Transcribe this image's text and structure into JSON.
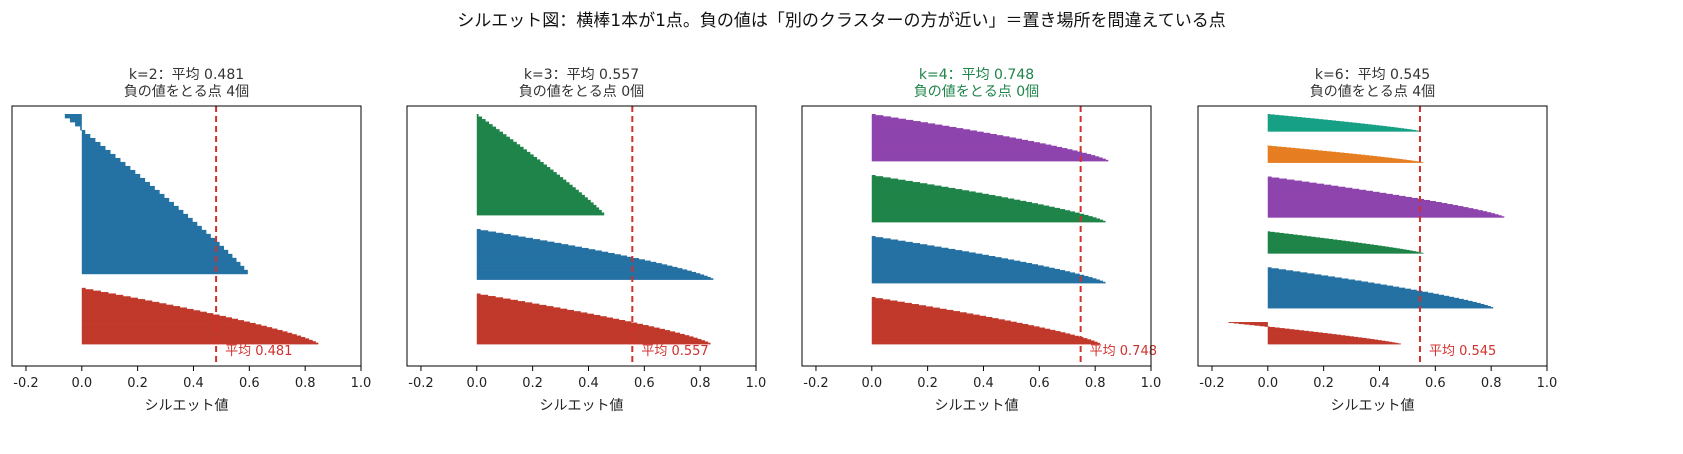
{
  "figure": {
    "suptitle": "シルエット図：横棒1本が1点。負の値は「別のクラスターの方が近い」＝置き場所を間違えている点",
    "highlight_color": "#1e8449",
    "avg_line_color": "#d0312d"
  },
  "chart_data": [
    {
      "type": "bar",
      "orientation": "horizontal",
      "k": 2,
      "title_line1": "k=2：平均 0.481",
      "title_line2": "負の値をとる点 4個",
      "highlight": false,
      "average": 0.481,
      "avg_label": "平均 0.481",
      "negative_count": 4,
      "xlabel": "シルエット値",
      "xlim": [
        -0.25,
        1.0
      ],
      "xticks": [
        "-0.2",
        "0.0",
        "0.2",
        "0.4",
        "0.6",
        "0.8",
        "1.0"
      ],
      "clusters": [
        {
          "color": "#c0392b",
          "max": 0.85,
          "min": 0.0,
          "shape": 1.3,
          "size": 58
        },
        {
          "color": "#2471a3",
          "max": 0.6,
          "min": -0.07,
          "shape": 1.1,
          "size": 165
        }
      ]
    },
    {
      "type": "bar",
      "orientation": "horizontal",
      "k": 3,
      "title_line1": "k=3：平均 0.557",
      "title_line2": "負の値をとる点 0個",
      "highlight": false,
      "average": 0.557,
      "avg_label": "平均 0.557",
      "negative_count": 0,
      "xlabel": "シルエット値",
      "xlim": [
        -0.25,
        1.0
      ],
      "xticks": [
        "-0.2",
        "0.0",
        "0.2",
        "0.4",
        "0.6",
        "0.8",
        "1.0"
      ],
      "clusters": [
        {
          "color": "#c0392b",
          "max": 0.84,
          "min": 0.0,
          "shape": 1.3,
          "size": 55
        },
        {
          "color": "#2471a3",
          "max": 0.85,
          "min": 0.0,
          "shape": 1.3,
          "size": 55
        },
        {
          "color": "#1e8449",
          "max": 0.46,
          "min": 0.0,
          "shape": 1.1,
          "size": 110
        }
      ]
    },
    {
      "type": "bar",
      "orientation": "horizontal",
      "k": 4,
      "title_line1": "k=4：平均 0.748",
      "title_line2": "負の値をとる点 0個",
      "highlight": true,
      "average": 0.748,
      "avg_label": "平均 0.748",
      "negative_count": 0,
      "xlabel": "シルエット値",
      "xlim": [
        -0.25,
        1.0
      ],
      "xticks": [
        "-0.2",
        "0.0",
        "0.2",
        "0.4",
        "0.6",
        "0.8",
        "1.0"
      ],
      "clusters": [
        {
          "color": "#c0392b",
          "max": 0.82,
          "min": 0.0,
          "shape": 1.3,
          "size": 55
        },
        {
          "color": "#2471a3",
          "max": 0.84,
          "min": 0.0,
          "shape": 1.3,
          "size": 55
        },
        {
          "color": "#1e8449",
          "max": 0.84,
          "min": 0.0,
          "shape": 1.3,
          "size": 55
        },
        {
          "color": "#8e44ad",
          "max": 0.85,
          "min": 0.0,
          "shape": 1.3,
          "size": 55
        }
      ]
    },
    {
      "type": "bar",
      "orientation": "horizontal",
      "k": 6,
      "title_line1": "k=6：平均 0.545",
      "title_line2": "負の値をとる点 4個",
      "highlight": false,
      "average": 0.545,
      "avg_label": "平均 0.545",
      "negative_count": 4,
      "xlabel": "シルエット値",
      "xlim": [
        -0.25,
        1.0
      ],
      "xticks": [
        "-0.2",
        "0.0",
        "0.2",
        "0.4",
        "0.6",
        "0.8",
        "1.0"
      ],
      "clusters": [
        {
          "color": "#c0392b",
          "max": 0.48,
          "min": -0.15,
          "shape": 1.2,
          "size": 28
        },
        {
          "color": "#2471a3",
          "max": 0.81,
          "min": 0.0,
          "shape": 1.3,
          "size": 52
        },
        {
          "color": "#1e8449",
          "max": 0.56,
          "min": 0.0,
          "shape": 1.2,
          "size": 28
        },
        {
          "color": "#8e44ad",
          "max": 0.85,
          "min": 0.0,
          "shape": 1.3,
          "size": 52
        },
        {
          "color": "#e67e22",
          "max": 0.56,
          "min": -0.01,
          "shape": 1.2,
          "size": 22
        },
        {
          "color": "#17a085",
          "max": 0.55,
          "min": 0.0,
          "shape": 1.2,
          "size": 22
        }
      ]
    }
  ]
}
